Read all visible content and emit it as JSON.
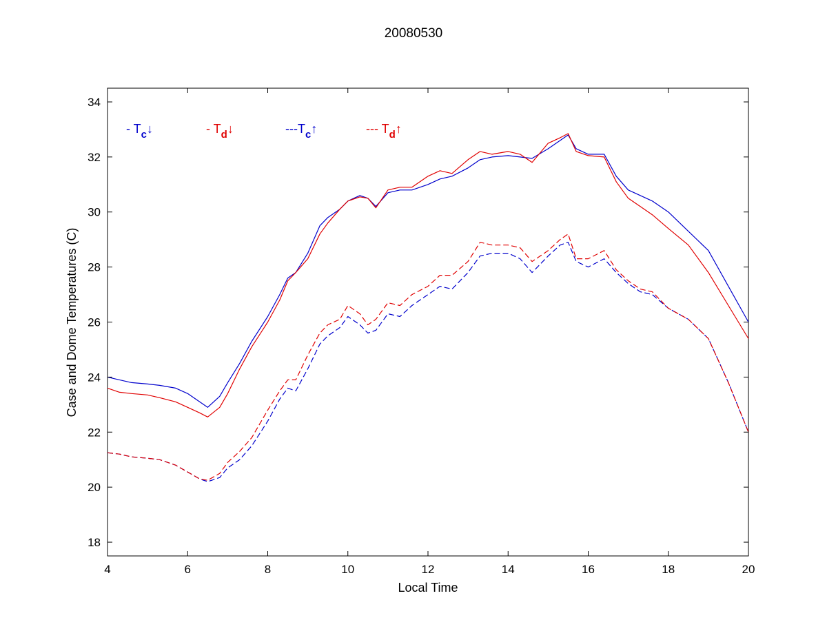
{
  "chart_data": {
    "type": "line",
    "title": "20080530",
    "xlabel": "Local Time",
    "ylabel": "Case and Dome Temperatures (C)",
    "xlim": [
      4,
      20
    ],
    "ylim": [
      17.5,
      34.5
    ],
    "xticks": [
      4,
      6,
      8,
      10,
      12,
      14,
      16,
      18,
      20
    ],
    "yticks": [
      18,
      20,
      22,
      24,
      26,
      28,
      30,
      32,
      34
    ],
    "grid": false,
    "legend_placement": "top-left",
    "legend": [
      {
        "prefix": "- ",
        "base": "T",
        "sub": "c",
        "arrow": "↓",
        "color": "#0000cc"
      },
      {
        "prefix": "- ",
        "base": "T",
        "sub": "d",
        "arrow": "↓",
        "color": "#e00000"
      },
      {
        "prefix": "---",
        "base": "T",
        "sub": "c",
        "arrow": "↑",
        "color": "#0000cc"
      },
      {
        "prefix": "--- ",
        "base": "T",
        "sub": "d",
        "arrow": "↑",
        "color": "#e00000"
      }
    ],
    "series": [
      {
        "key": "tc_down",
        "color": "#0000cc",
        "dash": "solid",
        "x": [
          4.0,
          4.3,
          4.6,
          5.0,
          5.3,
          5.7,
          6.0,
          6.3,
          6.5,
          6.8,
          7.0,
          7.3,
          7.6,
          8.0,
          8.3,
          8.5,
          8.7,
          9.0,
          9.3,
          9.5,
          9.8,
          10.0,
          10.3,
          10.5,
          10.7,
          11.0,
          11.3,
          11.6,
          12.0,
          12.3,
          12.6,
          13.0,
          13.3,
          13.6,
          14.0,
          14.3,
          14.6,
          15.0,
          15.3,
          15.5,
          15.7,
          16.0,
          16.4,
          16.7,
          17.0,
          17.3,
          17.6,
          18.0,
          18.5,
          19.0,
          19.5,
          20.0
        ],
        "y": [
          24.0,
          23.9,
          23.8,
          23.75,
          23.7,
          23.6,
          23.4,
          23.1,
          22.9,
          23.3,
          23.8,
          24.5,
          25.3,
          26.2,
          27.0,
          27.6,
          27.8,
          28.5,
          29.5,
          29.8,
          30.1,
          30.4,
          30.6,
          30.5,
          30.2,
          30.7,
          30.8,
          30.8,
          31.0,
          31.2,
          31.3,
          31.6,
          31.9,
          32.0,
          32.05,
          32.0,
          31.95,
          32.3,
          32.6,
          32.8,
          32.3,
          32.1,
          32.1,
          31.3,
          30.8,
          30.6,
          30.4,
          30.0,
          29.3,
          28.6,
          27.3,
          26.0
        ]
      },
      {
        "key": "td_down",
        "color": "#e00000",
        "dash": "solid",
        "x": [
          4.0,
          4.3,
          4.6,
          5.0,
          5.3,
          5.7,
          6.0,
          6.3,
          6.5,
          6.8,
          7.0,
          7.3,
          7.6,
          8.0,
          8.3,
          8.5,
          8.7,
          9.0,
          9.3,
          9.5,
          9.8,
          10.0,
          10.3,
          10.5,
          10.7,
          11.0,
          11.3,
          11.6,
          12.0,
          12.3,
          12.6,
          13.0,
          13.3,
          13.6,
          14.0,
          14.3,
          14.6,
          15.0,
          15.3,
          15.5,
          15.7,
          16.0,
          16.4,
          16.7,
          17.0,
          17.3,
          17.6,
          18.0,
          18.5,
          19.0,
          19.5,
          20.0
        ],
        "y": [
          23.6,
          23.45,
          23.4,
          23.35,
          23.25,
          23.1,
          22.9,
          22.7,
          22.55,
          22.9,
          23.4,
          24.3,
          25.1,
          26.0,
          26.8,
          27.5,
          27.8,
          28.3,
          29.2,
          29.6,
          30.1,
          30.4,
          30.55,
          30.5,
          30.15,
          30.8,
          30.9,
          30.9,
          31.3,
          31.5,
          31.4,
          31.9,
          32.2,
          32.1,
          32.2,
          32.1,
          31.8,
          32.5,
          32.7,
          32.85,
          32.2,
          32.05,
          32.0,
          31.1,
          30.5,
          30.2,
          29.9,
          29.4,
          28.8,
          27.8,
          26.6,
          25.4
        ]
      },
      {
        "key": "tc_up",
        "color": "#0000cc",
        "dash": "dashed",
        "x": [
          4.0,
          4.3,
          4.6,
          5.0,
          5.3,
          5.7,
          6.0,
          6.3,
          6.5,
          6.8,
          7.0,
          7.3,
          7.6,
          8.0,
          8.3,
          8.5,
          8.7,
          9.0,
          9.3,
          9.5,
          9.8,
          10.0,
          10.3,
          10.5,
          10.7,
          11.0,
          11.3,
          11.6,
          12.0,
          12.3,
          12.6,
          13.0,
          13.3,
          13.6,
          14.0,
          14.3,
          14.6,
          15.0,
          15.3,
          15.5,
          15.7,
          16.0,
          16.4,
          16.7,
          17.0,
          17.3,
          17.6,
          18.0,
          18.5,
          19.0,
          19.5,
          20.0
        ],
        "y": [
          21.25,
          21.2,
          21.1,
          21.05,
          21.0,
          20.8,
          20.55,
          20.3,
          20.2,
          20.35,
          20.7,
          21.0,
          21.5,
          22.4,
          23.2,
          23.6,
          23.5,
          24.3,
          25.2,
          25.5,
          25.8,
          26.2,
          25.9,
          25.6,
          25.7,
          26.3,
          26.2,
          26.6,
          27.0,
          27.3,
          27.2,
          27.8,
          28.4,
          28.5,
          28.5,
          28.3,
          27.8,
          28.4,
          28.8,
          28.9,
          28.2,
          28.0,
          28.3,
          27.8,
          27.4,
          27.1,
          27.0,
          26.5,
          26.1,
          25.4,
          23.8,
          22.0
        ]
      },
      {
        "key": "td_up",
        "color": "#e00000",
        "dash": "dashed",
        "x": [
          4.0,
          4.3,
          4.6,
          5.0,
          5.3,
          5.7,
          6.0,
          6.3,
          6.5,
          6.8,
          7.0,
          7.3,
          7.6,
          8.0,
          8.3,
          8.5,
          8.7,
          9.0,
          9.3,
          9.5,
          9.8,
          10.0,
          10.3,
          10.5,
          10.7,
          11.0,
          11.3,
          11.6,
          12.0,
          12.3,
          12.6,
          13.0,
          13.3,
          13.6,
          14.0,
          14.3,
          14.6,
          15.0,
          15.3,
          15.5,
          15.7,
          16.0,
          16.4,
          16.7,
          17.0,
          17.3,
          17.6,
          18.0,
          18.5,
          19.0,
          19.5,
          20.0
        ],
        "y": [
          21.25,
          21.2,
          21.1,
          21.05,
          21.0,
          20.8,
          20.55,
          20.3,
          20.25,
          20.5,
          20.9,
          21.3,
          21.8,
          22.8,
          23.5,
          23.9,
          23.9,
          24.8,
          25.6,
          25.9,
          26.1,
          26.6,
          26.3,
          25.9,
          26.1,
          26.7,
          26.6,
          27.0,
          27.3,
          27.7,
          27.7,
          28.2,
          28.9,
          28.8,
          28.8,
          28.7,
          28.2,
          28.6,
          29.0,
          29.2,
          28.3,
          28.3,
          28.6,
          27.9,
          27.5,
          27.2,
          27.1,
          26.5,
          26.1,
          25.4,
          23.8,
          22.0
        ]
      }
    ]
  }
}
